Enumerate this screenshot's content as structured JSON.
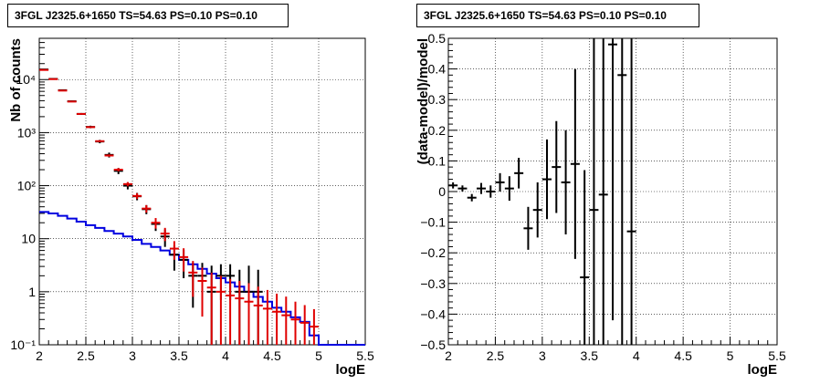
{
  "chart_data": [
    {
      "type": "scatter",
      "title": "3FGL J2325.6+1650 TS=54.63 PS=0.10 PS=0.10",
      "xlabel": "logE",
      "ylabel": "Nb of counts",
      "xlim": [
        2,
        5.5
      ],
      "ylim": [
        0.1,
        60000
      ],
      "yscale": "log",
      "grid": true,
      "x_ticks": [
        "2",
        "2.5",
        "3",
        "3.5",
        "4",
        "4.5",
        "5",
        "5.5"
      ],
      "y_ticks": [
        "10⁻¹",
        "1",
        "10",
        "10²",
        "10³",
        "10⁴"
      ],
      "series": [
        {
          "kind": "data-errorbars",
          "color": "#000000",
          "x": [
            2.05,
            2.15,
            2.25,
            2.35,
            2.45,
            2.55,
            2.65,
            2.75,
            2.85,
            2.95,
            3.05,
            3.15,
            3.25,
            3.35,
            3.45,
            3.55,
            3.65,
            3.75,
            3.85,
            3.95,
            4.05,
            4.15,
            4.25,
            4.35
          ],
          "y": [
            15500,
            10300,
            6300,
            3900,
            2250,
            1280,
            680,
            380,
            190,
            100,
            63,
            36,
            19,
            11,
            5,
            4,
            2,
            2,
            1,
            2,
            2,
            1,
            1,
            1
          ],
          "y_err_low": [
            300,
            200,
            150,
            120,
            90,
            70,
            50,
            40,
            25,
            15,
            10,
            7,
            5,
            4,
            2.5,
            2.2,
            1.5,
            1.5,
            0.9,
            1.3,
            1.3,
            0.9,
            0.9,
            0.9
          ],
          "y_err_high": [
            300,
            200,
            150,
            120,
            90,
            70,
            50,
            40,
            25,
            15,
            10,
            7,
            5,
            4,
            2.5,
            2.2,
            1.5,
            1.5,
            2.1,
            1.3,
            1.3,
            1.6,
            2.1,
            1.6
          ]
        },
        {
          "kind": "model-points",
          "color": "#e00000",
          "x": [
            2.05,
            2.15,
            2.25,
            2.35,
            2.45,
            2.55,
            2.65,
            2.75,
            2.85,
            2.95,
            3.05,
            3.15,
            3.25,
            3.35,
            3.45,
            3.55,
            3.65,
            3.75,
            3.85,
            3.95,
            4.05,
            4.15,
            4.25,
            4.35,
            4.45,
            4.55,
            4.65,
            4.75,
            4.85,
            4.95
          ],
          "y": [
            15200,
            10200,
            6200,
            3850,
            2250,
            1270,
            690,
            370,
            200,
            107,
            64,
            37,
            20,
            12.5,
            6.5,
            4.5,
            2.3,
            1.6,
            1.2,
            1.0,
            0.85,
            0.75,
            0.65,
            0.55,
            0.48,
            0.42,
            0.36,
            0.3,
            0.26,
            0.22
          ],
          "y_err_low": [
            120,
            100,
            78,
            62,
            47,
            36,
            26,
            19,
            14,
            10,
            8,
            6,
            4.5,
            3.5,
            2.5,
            2.1,
            1.5,
            1.26,
            1.1,
            0.999,
            0.849,
            0.749,
            0.649,
            0.549,
            0.479,
            0.419,
            0.359,
            0.299,
            0.259,
            0.219
          ],
          "y_err_high": [
            120,
            100,
            78,
            62,
            47,
            36,
            26,
            19,
            14,
            10,
            8,
            6,
            4.5,
            3.5,
            2.5,
            2.1,
            1.5,
            1.26,
            1.1,
            1.0,
            0.9,
            0.85,
            0.8,
            0.7,
            0.6,
            0.5,
            0.45,
            0.35,
            0.3,
            0.25
          ]
        },
        {
          "kind": "model-step",
          "color": "#0000e0",
          "x_edges": [
            2.0,
            2.1,
            2.2,
            2.3,
            2.4,
            2.5,
            2.6,
            2.7,
            2.8,
            2.9,
            3.0,
            3.1,
            3.2,
            3.3,
            3.4,
            3.5,
            3.6,
            3.7,
            3.8,
            3.9,
            4.0,
            4.1,
            4.2,
            4.3,
            4.4,
            4.5,
            4.6,
            4.7,
            4.8,
            4.9,
            5.0,
            5.1,
            5.2,
            5.3,
            5.4,
            5.5
          ],
          "y": [
            32,
            30,
            27,
            24,
            21,
            18,
            16,
            14,
            12.5,
            11,
            9.5,
            8,
            7,
            6,
            5,
            4,
            3.3,
            2.7,
            2.2,
            1.8,
            1.5,
            1.25,
            1.0,
            0.8,
            0.65,
            0.5,
            0.42,
            0.33,
            0.27,
            0.15,
            0.1,
            0.1,
            0.1,
            0.1,
            0.1
          ]
        }
      ]
    },
    {
      "type": "scatter",
      "title": "3FGL J2325.6+1650 TS=54.63 PS=0.10 PS=0.10",
      "xlabel": "logE",
      "ylabel": "(data-model)/model",
      "xlim": [
        2,
        5.5
      ],
      "ylim": [
        -0.5,
        0.5
      ],
      "grid": true,
      "x_ticks": [
        "2",
        "2.5",
        "3",
        "3.5",
        "4",
        "4.5",
        "5",
        "5.5"
      ],
      "y_ticks": [
        "−0.5",
        "−0.4",
        "−0.3",
        "−0.2",
        "−0.1",
        "0",
        "0.1",
        "0.2",
        "0.3",
        "0.4",
        "0.5"
      ],
      "series": [
        {
          "kind": "residuals",
          "color": "#000000",
          "x": [
            2.05,
            2.15,
            2.25,
            2.35,
            2.45,
            2.55,
            2.65,
            2.75,
            2.85,
            2.95,
            3.05,
            3.15,
            3.25,
            3.35,
            3.45,
            3.55,
            3.65,
            3.75,
            3.85,
            3.95
          ],
          "y": [
            0.02,
            0.01,
            -0.02,
            0.01,
            0.0,
            0.03,
            0.01,
            0.06,
            -0.12,
            -0.06,
            0.04,
            0.08,
            0.03,
            0.09,
            -0.28,
            -0.06,
            -0.01,
            0.48,
            0.38,
            -0.13
          ],
          "y_err": [
            0.01,
            0.01,
            0.012,
            0.018,
            0.02,
            0.03,
            0.04,
            0.05,
            0.07,
            0.09,
            0.13,
            0.15,
            0.17,
            0.31,
            0.35,
            0.6,
            0.7,
            0.9,
            1.0,
            1.5
          ]
        }
      ]
    }
  ]
}
